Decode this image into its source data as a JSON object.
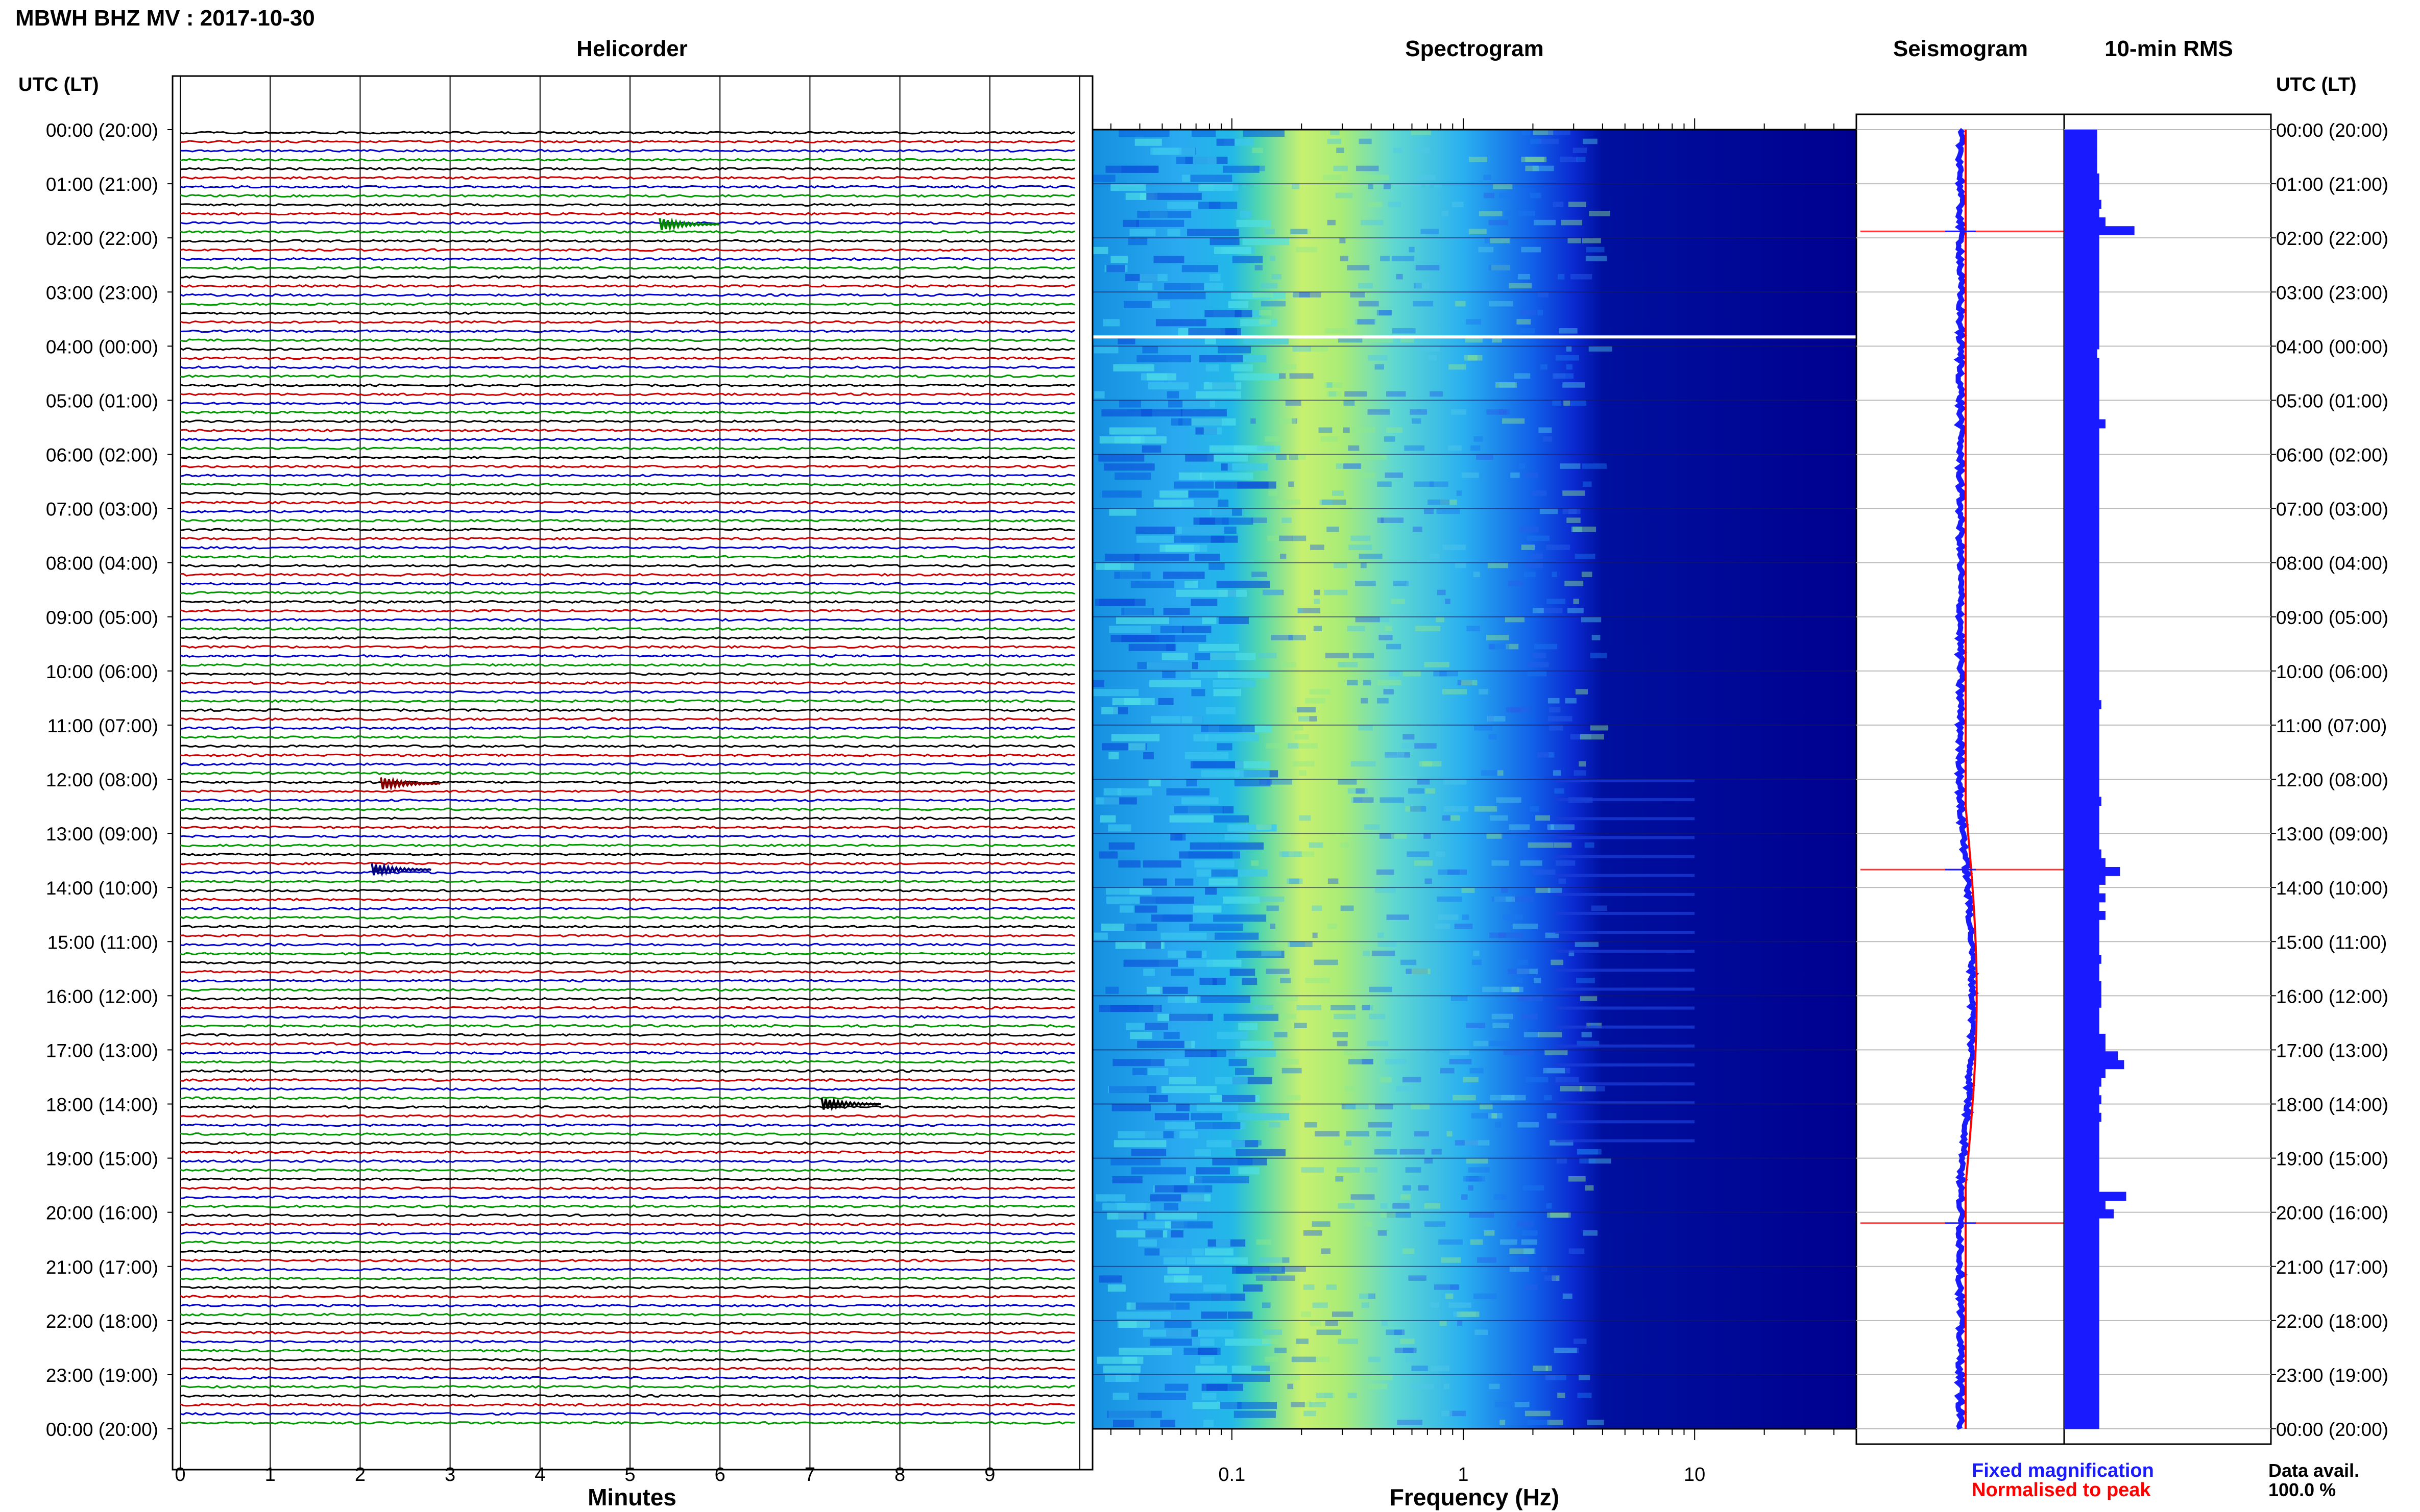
{
  "title": "MBWH BHZ MV : 2017-10-30",
  "panels": {
    "helicorder": "Helicorder",
    "spectrogram": "Spectrogram",
    "seismogram": "Seismogram",
    "rms": "10-min RMS"
  },
  "time_axis_label": "UTC (LT)",
  "time_ticks": [
    "00:00 (20:00)",
    "01:00 (21:00)",
    "02:00 (22:00)",
    "03:00 (23:00)",
    "04:00 (00:00)",
    "05:00 (01:00)",
    "06:00 (02:00)",
    "07:00 (03:00)",
    "08:00 (04:00)",
    "09:00 (05:00)",
    "10:00 (06:00)",
    "11:00 (07:00)",
    "12:00 (08:00)",
    "13:00 (09:00)",
    "14:00 (10:00)",
    "15:00 (11:00)",
    "16:00 (12:00)",
    "17:00 (13:00)",
    "18:00 (14:00)",
    "19:00 (15:00)",
    "20:00 (16:00)",
    "21:00 (17:00)",
    "22:00 (18:00)",
    "23:00 (19:00)",
    "00:00 (20:00)"
  ],
  "minutes_axis": {
    "label": "Minutes",
    "ticks": [
      "0",
      "1",
      "2",
      "3",
      "4",
      "5",
      "6",
      "7",
      "8",
      "9"
    ]
  },
  "frequency_axis": {
    "label": "Frequency (Hz)",
    "ticks": [
      "0.1",
      "1",
      "10"
    ],
    "scale": "log"
  },
  "legend": {
    "fixed": {
      "label": "Fixed magnification",
      "color": "#1a1aff"
    },
    "normalised": {
      "label": "Normalised to peak",
      "color": "#ff0000"
    }
  },
  "data_avail": {
    "label": "Data avail.",
    "value": "100.0 %"
  },
  "colors": {
    "trace_cycle": [
      "#000000",
      "#cc0000",
      "#0000cc",
      "#009900"
    ],
    "rms_bar": "#1a1aff"
  },
  "chart_data": {
    "type": "heatmap",
    "station": "MBWH BHZ MV",
    "date": "2017-10-30",
    "time_range_hours": [
      0,
      24
    ],
    "helicorder_rows": 144,
    "row_minutes": 10,
    "helicorder_events": [
      {
        "utc_hour": 1.75,
        "minute": 5.5,
        "color": "green"
      },
      {
        "utc_hour": 12.08,
        "minute": 2.4,
        "color": "darkred"
      },
      {
        "utc_hour": 13.67,
        "minute": 2.3,
        "color": "darkblue"
      },
      {
        "utc_hour": 18.0,
        "minute": 7.3,
        "color": "black"
      }
    ],
    "spectrogram_freq_range_hz": [
      0.025,
      50
    ],
    "rms_10min": [
      0.16,
      0.16,
      0.16,
      0.16,
      0.16,
      0.17,
      0.17,
      0.17,
      0.18,
      0.17,
      0.2,
      0.34,
      0.17,
      0.17,
      0.17,
      0.17,
      0.17,
      0.17,
      0.17,
      0.17,
      0.17,
      0.17,
      0.17,
      0.17,
      0.17,
      0.16,
      0.17,
      0.17,
      0.17,
      0.17,
      0.17,
      0.17,
      0.17,
      0.2,
      0.17,
      0.17,
      0.17,
      0.17,
      0.17,
      0.17,
      0.17,
      0.17,
      0.17,
      0.17,
      0.17,
      0.17,
      0.17,
      0.17,
      0.17,
      0.17,
      0.17,
      0.17,
      0.17,
      0.17,
      0.17,
      0.17,
      0.17,
      0.17,
      0.17,
      0.17,
      0.17,
      0.17,
      0.17,
      0.17,
      0.17,
      0.18,
      0.17,
      0.17,
      0.17,
      0.17,
      0.17,
      0.17,
      0.17,
      0.17,
      0.17,
      0.17,
      0.18,
      0.17,
      0.17,
      0.17,
      0.17,
      0.17,
      0.18,
      0.2,
      0.27,
      0.2,
      0.17,
      0.2,
      0.17,
      0.2,
      0.17,
      0.17,
      0.17,
      0.17,
      0.18,
      0.17,
      0.17,
      0.18,
      0.18,
      0.18,
      0.17,
      0.17,
      0.17,
      0.2,
      0.2,
      0.26,
      0.29,
      0.2,
      0.18,
      0.17,
      0.18,
      0.17,
      0.18,
      0.17,
      0.17,
      0.17,
      0.17,
      0.17,
      0.17,
      0.17,
      0.17,
      0.3,
      0.2,
      0.24,
      0.17,
      0.17,
      0.17,
      0.17,
      0.17,
      0.17,
      0.17,
      0.17,
      0.17,
      0.17,
      0.17,
      0.17,
      0.17,
      0.17,
      0.17,
      0.17,
      0.17,
      0.17,
      0.17,
      0.17,
      0.17,
      0.17,
      0.17,
      0.17
    ],
    "rms_xlim": [
      0,
      1
    ],
    "seismogram_spikes_utc_hour": [
      1.88,
      13.67,
      20.2
    ]
  }
}
